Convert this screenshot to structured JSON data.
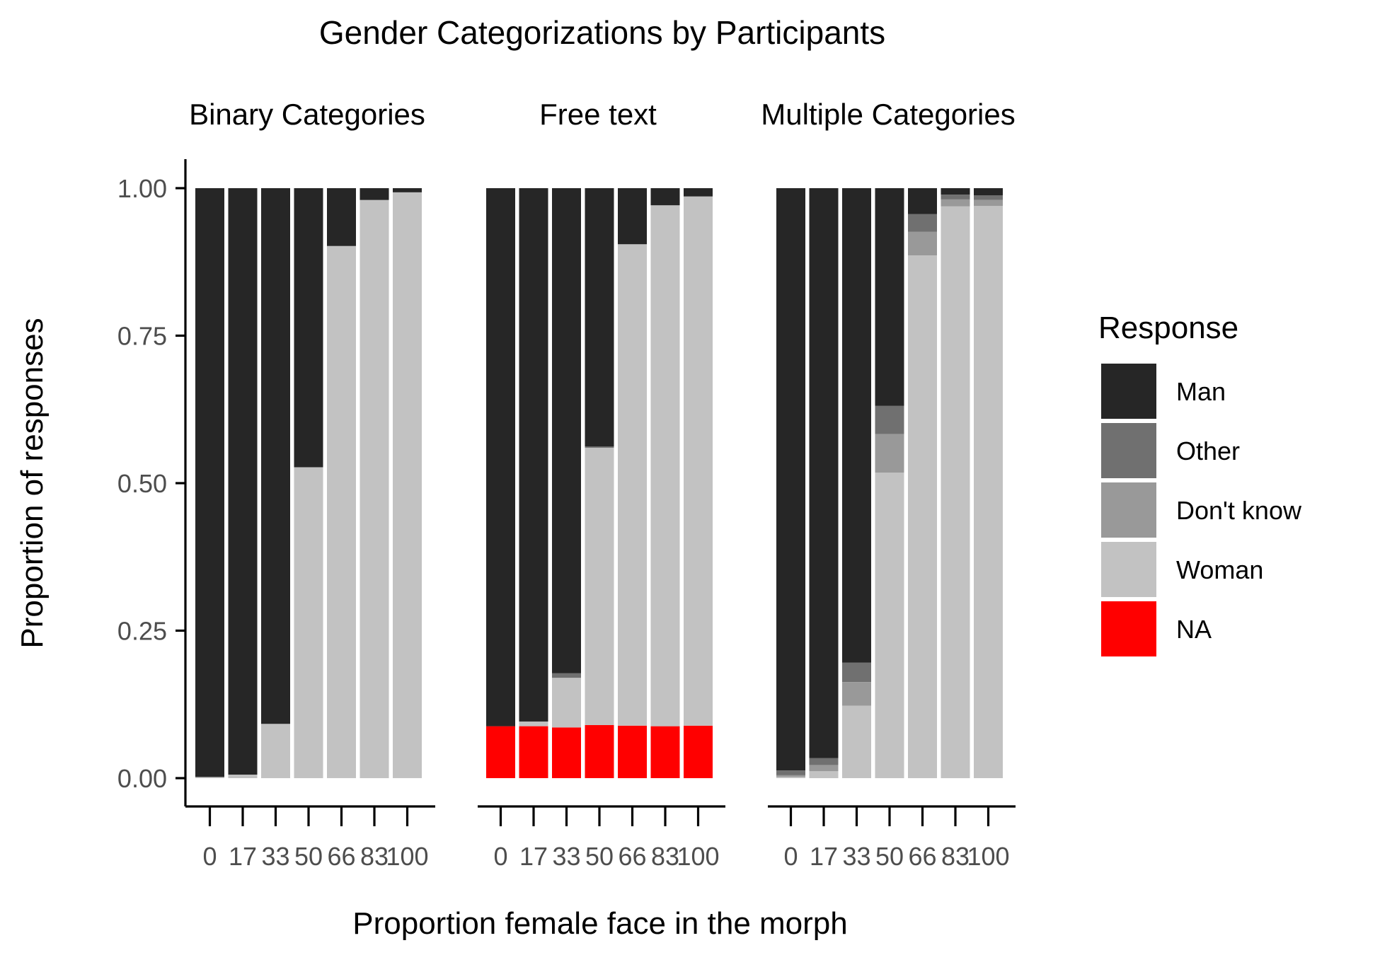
{
  "chart_data": {
    "type": "bar",
    "stacked": true,
    "title": "Gender Categorizations by Participants",
    "xlabel": "Proportion female face in the morph",
    "ylabel": "Proportion of responses",
    "ylim": [
      0,
      1
    ],
    "yticks": [
      "0.00",
      "0.25",
      "0.50",
      "0.75",
      "1.00"
    ],
    "categories": [
      "0",
      "17",
      "33",
      "50",
      "66",
      "83",
      "100"
    ],
    "legend": {
      "title": "Response",
      "position": "right",
      "items": [
        {
          "name": "Man",
          "color": "#262626"
        },
        {
          "name": "Other",
          "color": "#707070"
        },
        {
          "name": "Don't know",
          "color": "#999999"
        },
        {
          "name": "Woman",
          "color": "#c2c2c2"
        },
        {
          "name": "NA",
          "color": "#ff0000"
        }
      ]
    },
    "stack_order_bottom_to_top": [
      "NA",
      "Woman",
      "Don't know",
      "Other",
      "Man"
    ],
    "panels": [
      {
        "strip_label": "Binary Categories",
        "series": [
          {
            "name": "NA",
            "values": [
              0,
              0,
              0,
              0,
              0,
              0,
              0
            ]
          },
          {
            "name": "Woman",
            "values": [
              0.002,
              0.006,
              0.092,
              0.527,
              0.902,
              0.98,
              0.993
            ]
          },
          {
            "name": "Don't know",
            "values": [
              0,
              0,
              0,
              0,
              0,
              0,
              0
            ]
          },
          {
            "name": "Other",
            "values": [
              0,
              0,
              0,
              0,
              0,
              0,
              0
            ]
          },
          {
            "name": "Man",
            "values": [
              0.998,
              0.994,
              0.908,
              0.473,
              0.098,
              0.02,
              0.007
            ]
          }
        ]
      },
      {
        "strip_label": "Free text",
        "series": [
          {
            "name": "NA",
            "values": [
              0.088,
              0.088,
              0.086,
              0.09,
              0.089,
              0.088,
              0.089
            ]
          },
          {
            "name": "Woman",
            "values": [
              0,
              0.008,
              0.084,
              0.47,
              0.816,
              0.883,
              0.897
            ]
          },
          {
            "name": "Don't know",
            "values": [
              0,
              0,
              0,
              0,
              0,
              0,
              0
            ]
          },
          {
            "name": "Other",
            "values": [
              0,
              0,
              0.008,
              0.002,
              0,
              0,
              0
            ]
          },
          {
            "name": "Man",
            "values": [
              0.912,
              0.904,
              0.822,
              0.438,
              0.095,
              0.029,
              0.014
            ]
          }
        ]
      },
      {
        "strip_label": "Multiple Categories",
        "series": [
          {
            "name": "NA",
            "values": [
              0,
              0,
              0,
              0,
              0,
              0,
              0
            ]
          },
          {
            "name": "Woman",
            "values": [
              0.002,
              0.012,
              0.123,
              0.518,
              0.886,
              0.969,
              0.97
            ]
          },
          {
            "name": "Don't know",
            "values": [
              0.003,
              0.01,
              0.04,
              0.065,
              0.04,
              0.012,
              0.01
            ]
          },
          {
            "name": "Other",
            "values": [
              0.008,
              0.012,
              0.033,
              0.048,
              0.03,
              0.008,
              0.008
            ]
          },
          {
            "name": "Man",
            "values": [
              0.987,
              0.966,
              0.804,
              0.369,
              0.044,
              0.011,
              0.012
            ]
          }
        ]
      }
    ]
  }
}
